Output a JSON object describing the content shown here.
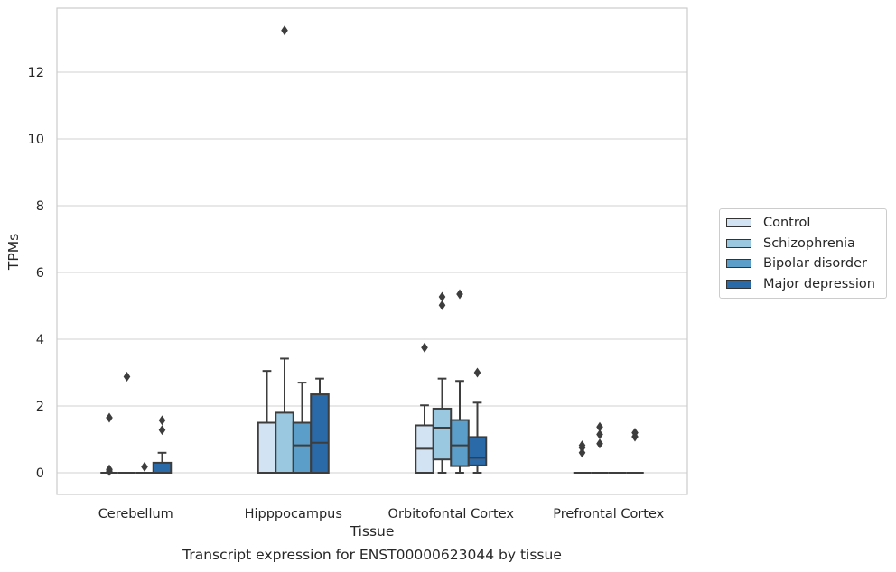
{
  "chart_data": {
    "type": "box",
    "xlabel": "Tissue",
    "ylabel": "TPMs",
    "categories": [
      "Cerebellum",
      "Hipppocampus",
      "Orbitofontal Cortex",
      "Prefrontal Cortex"
    ],
    "yticks": [
      0,
      2,
      4,
      6,
      8,
      10,
      12
    ],
    "ylim": [
      -0.65,
      13.95
    ],
    "grid": "horizontal",
    "legend_position": "right",
    "series": [
      {
        "name": "Control",
        "color": "#d2e3f3",
        "boxes": [
          {
            "whislo": 0,
            "q1": 0,
            "med": 0,
            "q3": 0,
            "whishi": 0,
            "fliers": [
              0.05,
              0.1,
              1.65
            ]
          },
          {
            "whislo": 0,
            "q1": 0,
            "med": 0,
            "q3": 1.5,
            "whishi": 3.05,
            "fliers": []
          },
          {
            "whislo": 0,
            "q1": 0,
            "med": 0.72,
            "q3": 1.42,
            "whishi": 2.02,
            "fliers": [
              3.75
            ]
          },
          {
            "whislo": 0,
            "q1": 0,
            "med": 0,
            "q3": 0,
            "whishi": 0,
            "fliers": [
              0.6,
              0.75,
              0.82
            ]
          }
        ]
      },
      {
        "name": "Schizophrenia",
        "color": "#9ac8e0",
        "boxes": [
          {
            "whislo": 0,
            "q1": 0,
            "med": 0,
            "q3": 0,
            "whishi": 0,
            "fliers": [
              2.88
            ]
          },
          {
            "whislo": 0,
            "q1": 0,
            "med": 0,
            "q3": 1.8,
            "whishi": 3.42,
            "fliers": [
              13.25
            ]
          },
          {
            "whislo": 0,
            "q1": 0.4,
            "med": 1.35,
            "q3": 1.92,
            "whishi": 2.82,
            "fliers": [
              5.02,
              5.27
            ]
          },
          {
            "whislo": 0,
            "q1": 0,
            "med": 0,
            "q3": 0,
            "whishi": 0,
            "fliers": [
              0.87,
              1.15,
              1.37
            ]
          }
        ]
      },
      {
        "name": "Bipolar disorder",
        "color": "#5b9ec9",
        "boxes": [
          {
            "whislo": 0,
            "q1": 0,
            "med": 0,
            "q3": 0,
            "whishi": 0,
            "fliers": [
              0.18
            ]
          },
          {
            "whislo": 0,
            "q1": 0,
            "med": 0.82,
            "q3": 1.5,
            "whishi": 2.7,
            "fliers": []
          },
          {
            "whislo": 0,
            "q1": 0.2,
            "med": 0.82,
            "q3": 1.58,
            "whishi": 2.75,
            "fliers": [
              5.35
            ]
          },
          {
            "whislo": 0,
            "q1": 0,
            "med": 0,
            "q3": 0,
            "whishi": 0,
            "fliers": []
          }
        ]
      },
      {
        "name": "Major depression",
        "color": "#2a6aa8",
        "boxes": [
          {
            "whislo": 0,
            "q1": 0,
            "med": 0,
            "q3": 0.3,
            "whishi": 0.6,
            "fliers": [
              1.28,
              1.57
            ]
          },
          {
            "whislo": 0,
            "q1": 0,
            "med": 0.9,
            "q3": 2.35,
            "whishi": 2.82,
            "fliers": []
          },
          {
            "whislo": 0,
            "q1": 0.22,
            "med": 0.45,
            "q3": 1.07,
            "whishi": 2.1,
            "fliers": [
              3.0
            ]
          },
          {
            "whislo": 0,
            "q1": 0,
            "med": 0,
            "q3": 0,
            "whishi": 0,
            "fliers": [
              1.08,
              1.2
            ]
          }
        ]
      }
    ]
  },
  "caption": "Transcript expression for ENST00000623044 by tissue"
}
